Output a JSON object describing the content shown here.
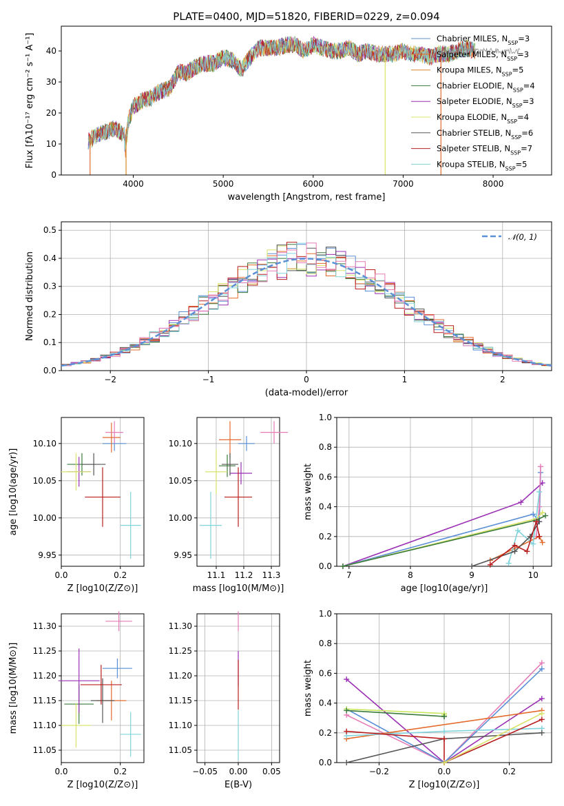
{
  "page": {
    "title": "PLATE=0400, MJD=51820, FIBERID=0229, z=0.094"
  },
  "colors": {
    "Chabrier MILES": "#5b8fd6",
    "Salpeter MILES": "#e36a2a",
    "Kroupa MILES": "#d98a26",
    "Chabrier ELODIE": "#3a7a3a",
    "Salpeter ELODIE": "#9a2fb3",
    "Kroupa ELODIE": "#d9e36a",
    "Chabrier STELIB": "#555555",
    "Salpeter STELIB": "#b81d1d",
    "Kroupa STELIB": "#7fd3dc",
    "extra_pink": "#e67bb6",
    "extra_lime": "#c8e65c",
    "gaussian": "#5b8fd6"
  },
  "chart_data": [
    {
      "id": "spectrum",
      "type": "line",
      "title": "PLATE=0400, MJD=51820, FIBERID=0229, z=0.094",
      "xlabel": "wavelength [Angstrom, rest frame]",
      "ylabel": "Flux [fλ10⁻¹⁷ erg cm⁻² s⁻¹ A⁻¹]",
      "xlim": [
        3200,
        8650
      ],
      "ylim": [
        0,
        48
      ],
      "xticks": [
        4000,
        5000,
        6000,
        7000,
        8000
      ],
      "yticks": [
        0,
        10,
        20,
        30,
        40
      ],
      "grid": false,
      "legend_position": "top-right",
      "legend": [
        {
          "name": "Chabrier MILES",
          "nssp": "3"
        },
        {
          "name": "Salpeter MILES",
          "nssp": "3"
        },
        {
          "name": "Kroupa MILES",
          "nssp": "5"
        },
        {
          "name": "Chabrier ELODIE",
          "nssp": "4"
        },
        {
          "name": "Salpeter ELODIE",
          "nssp": "3"
        },
        {
          "name": "Kroupa ELODIE",
          "nssp": "4"
        },
        {
          "name": "Chabrier STELIB",
          "nssp": "6"
        },
        {
          "name": "Salpeter STELIB",
          "nssp": "7"
        },
        {
          "name": "Kroupa STELIB",
          "nssp": "5"
        }
      ],
      "envelope": {
        "x": [
          3500,
          3600,
          3700,
          3800,
          3900,
          4000,
          4100,
          4200,
          4300,
          4400,
          4500,
          4600,
          4700,
          4800,
          4900,
          5000,
          5100,
          5200,
          5300,
          5400,
          5500,
          5600,
          5700,
          5800,
          5900,
          6000,
          6100,
          6200,
          6300,
          6400,
          6500,
          6600,
          6700,
          6800,
          6900,
          7000,
          7100,
          7200,
          7300,
          7400,
          7500,
          7600,
          7700,
          7800
        ],
        "y": [
          11,
          13,
          14,
          15,
          13,
          22,
          24,
          25,
          27,
          28,
          33,
          33,
          35,
          36,
          36,
          38,
          37,
          34,
          38,
          41,
          41,
          41,
          42,
          42,
          40,
          42,
          41,
          40,
          40,
          41,
          39,
          40,
          39,
          39,
          39,
          40,
          39,
          39,
          38,
          39,
          39,
          40,
          41,
          40
        ]
      },
      "dropouts": [
        {
          "x": 3520,
          "series": "Salpeter MILES"
        },
        {
          "x": 3920,
          "series": "Kroupa MILES"
        },
        {
          "x": 6800,
          "series": "Kroupa ELODIE"
        },
        {
          "x": 7420,
          "series": "Salpeter MILES"
        }
      ]
    },
    {
      "id": "residuals",
      "type": "histogram",
      "xlabel": "(data-model)/error",
      "ylabel": "Normed distribution",
      "xlim": [
        -2.5,
        2.5
      ],
      "ylim": [
        0,
        0.53
      ],
      "xticks": [
        -2,
        -1,
        0,
        1,
        2
      ],
      "yticks": [
        0.0,
        0.1,
        0.2,
        0.3,
        0.4,
        0.5
      ],
      "grid": true,
      "legend_position": "top-right",
      "legend": [
        {
          "name": "𝒩(0, 1)",
          "style": "dashed"
        }
      ],
      "bin_width": 0.1
    },
    {
      "id": "age-vs-z",
      "type": "errorbar",
      "xlabel": "Z [log10(Z/Z⊙)]",
      "ylabel": "age  [log10(age/yr)]",
      "xlim": [
        0.0,
        0.28
      ],
      "ylim": [
        9.935,
        10.135
      ],
      "xticks": [
        0.0,
        0.2
      ],
      "yticks": [
        9.95,
        10.0,
        10.05,
        10.1
      ],
      "grid": true,
      "points": [
        {
          "x": 0.18,
          "y": 10.1,
          "xerr": 0.04,
          "yerr": 0.01,
          "color": "#5b8fd6"
        },
        {
          "x": 0.17,
          "y": 10.108,
          "xerr": 0.03,
          "yerr": 0.02,
          "color": "#e36a2a"
        },
        {
          "x": 0.18,
          "y": 10.115,
          "xerr": 0.03,
          "yerr": 0.015,
          "color": "#e67bb6"
        },
        {
          "x": 0.07,
          "y": 10.072,
          "xerr": 0.05,
          "yerr": 0.015,
          "color": "#3a7a3a"
        },
        {
          "x": 0.06,
          "y": 10.062,
          "xerr": 0.04,
          "yerr": 0.02,
          "color": "#9a2fb3"
        },
        {
          "x": 0.05,
          "y": 10.062,
          "xerr": 0.05,
          "yerr": 0.025,
          "color": "#d9e36a"
        },
        {
          "x": 0.11,
          "y": 10.072,
          "xerr": 0.04,
          "yerr": 0.015,
          "color": "#555555"
        },
        {
          "x": 0.14,
          "y": 10.028,
          "xerr": 0.06,
          "yerr": 0.04,
          "color": "#b81d1d"
        },
        {
          "x": 0.235,
          "y": 9.99,
          "xerr": 0.035,
          "yerr": 0.045,
          "color": "#7fd3dc"
        }
      ]
    },
    {
      "id": "age-vs-mass",
      "type": "errorbar",
      "xlabel": "mass [log10(M/M⊙)]",
      "ylabel": "",
      "xlim": [
        11.03,
        11.33
      ],
      "ylim": [
        9.935,
        10.135
      ],
      "xticks": [
        11.1,
        11.2,
        11.3
      ],
      "yticks": [
        9.95,
        10.0,
        10.05,
        10.1
      ],
      "grid": true,
      "points": [
        {
          "x": 11.21,
          "y": 10.1,
          "xerr": 0.03,
          "yerr": 0.01,
          "color": "#5b8fd6"
        },
        {
          "x": 11.15,
          "y": 10.105,
          "xerr": 0.04,
          "yerr": 0.025,
          "color": "#e36a2a"
        },
        {
          "x": 11.31,
          "y": 10.115,
          "xerr": 0.05,
          "yerr": 0.015,
          "color": "#e67bb6"
        },
        {
          "x": 11.14,
          "y": 10.07,
          "xerr": 0.03,
          "yerr": 0.015,
          "color": "#3a7a3a"
        },
        {
          "x": 11.19,
          "y": 10.06,
          "xerr": 0.04,
          "yerr": 0.015,
          "color": "#9a2fb3"
        },
        {
          "x": 11.1,
          "y": 10.062,
          "xerr": 0.04,
          "yerr": 0.03,
          "color": "#d9e36a"
        },
        {
          "x": 11.15,
          "y": 10.072,
          "xerr": 0.03,
          "yerr": 0.015,
          "color": "#555555"
        },
        {
          "x": 11.18,
          "y": 10.028,
          "xerr": 0.05,
          "yerr": 0.04,
          "color": "#b81d1d"
        },
        {
          "x": 11.08,
          "y": 9.99,
          "xerr": 0.04,
          "yerr": 0.045,
          "color": "#7fd3dc"
        }
      ]
    },
    {
      "id": "mass-weight-vs-age",
      "type": "line",
      "xlabel": "age  [log10(age/yr)]",
      "ylabel": "mass weight",
      "xlim": [
        6.8,
        10.3
      ],
      "ylim": [
        0,
        1.0
      ],
      "xticks": [
        7,
        8,
        9,
        10
      ],
      "yticks": [
        0.0,
        0.2,
        0.4,
        0.6,
        0.8,
        1.0
      ],
      "grid": true,
      "series": [
        {
          "color": "#9a2fb3",
          "x": [
            6.9,
            9.8,
            10.15
          ],
          "y": [
            0.0,
            0.43,
            0.56
          ]
        },
        {
          "color": "#5b8fd6",
          "x": [
            6.9,
            10.0,
            10.1,
            10.12
          ],
          "y": [
            0.0,
            0.35,
            0.3,
            0.63
          ]
        },
        {
          "color": "#e67bb6",
          "x": [
            10.05,
            10.1,
            10.12
          ],
          "y": [
            0.2,
            0.4,
            0.67
          ]
        },
        {
          "color": "#d9e36a",
          "x": [
            6.9,
            10.05,
            10.15
          ],
          "y": [
            0.0,
            0.32,
            0.36
          ]
        },
        {
          "color": "#3a7a3a",
          "x": [
            6.9,
            10.05,
            10.2
          ],
          "y": [
            0.0,
            0.31,
            0.34
          ]
        },
        {
          "color": "#e36a2a",
          "x": [
            9.3,
            10.1,
            10.15
          ],
          "y": [
            0.04,
            0.2,
            0.16
          ]
        },
        {
          "color": "#7fd3dc",
          "x": [
            9.6,
            9.75,
            10.0,
            10.1
          ],
          "y": [
            0.02,
            0.24,
            0.15,
            0.5
          ]
        },
        {
          "color": "#555555",
          "x": [
            9.0,
            9.7,
            9.95,
            10.1
          ],
          "y": [
            0.0,
            0.1,
            0.2,
            0.3
          ]
        },
        {
          "color": "#b81d1d",
          "x": [
            9.3,
            9.7,
            9.9,
            10.05,
            10.1
          ],
          "y": [
            0.01,
            0.14,
            0.1,
            0.3,
            0.2
          ]
        }
      ]
    },
    {
      "id": "mass-vs-z",
      "type": "errorbar",
      "xlabel": "Z [log10(Z/Z⊙)]",
      "ylabel": "mass [log10(M/M⊙)]",
      "xlim": [
        0.0,
        0.28
      ],
      "ylim": [
        11.025,
        11.325
      ],
      "xticks": [
        0.0,
        0.2
      ],
      "yticks": [
        11.05,
        11.1,
        11.15,
        11.2,
        11.25,
        11.3
      ],
      "grid": true,
      "points": [
        {
          "x": 0.19,
          "y": 11.215,
          "xerr": 0.05,
          "yerr": 0.02,
          "color": "#5b8fd6"
        },
        {
          "x": 0.17,
          "y": 11.15,
          "xerr": 0.05,
          "yerr": 0.04,
          "color": "#e36a2a"
        },
        {
          "x": 0.195,
          "y": 11.31,
          "xerr": 0.045,
          "yerr": 0.02,
          "color": "#e67bb6"
        },
        {
          "x": 0.06,
          "y": 11.143,
          "xerr": 0.05,
          "yerr": 0.04,
          "color": "#3a7a3a"
        },
        {
          "x": 0.06,
          "y": 11.19,
          "xerr": 0.07,
          "yerr": 0.065,
          "color": "#9a2fb3"
        },
        {
          "x": 0.05,
          "y": 11.1,
          "xerr": 0.05,
          "yerr": 0.045,
          "color": "#d9e36a"
        },
        {
          "x": 0.14,
          "y": 11.15,
          "xerr": 0.04,
          "yerr": 0.045,
          "color": "#555555"
        },
        {
          "x": 0.135,
          "y": 11.182,
          "xerr": 0.07,
          "yerr": 0.04,
          "color": "#b81d1d"
        },
        {
          "x": 0.235,
          "y": 11.082,
          "xerr": 0.035,
          "yerr": 0.045,
          "color": "#7fd3dc"
        }
      ]
    },
    {
      "id": "mass-vs-ebv",
      "type": "errorbar",
      "xlabel": "E(B-V)",
      "ylabel": "",
      "xlim": [
        -0.062,
        0.062
      ],
      "ylim": [
        11.025,
        11.325
      ],
      "xticks": [
        -0.05,
        0.0,
        0.05
      ],
      "xtick_labels": [
        "−0.05",
        "0.00",
        "0.05"
      ],
      "yticks": [
        11.05,
        11.1,
        11.15,
        11.2,
        11.25,
        11.3
      ],
      "grid": true,
      "points": [
        {
          "x": 0.0,
          "y": 11.31,
          "xerr": 0,
          "yerr": 0.02,
          "color": "#e67bb6"
        },
        {
          "x": 0.0,
          "y": 11.215,
          "xerr": 0,
          "yerr": 0.035,
          "color": "#9a2fb3"
        },
        {
          "x": 0.0,
          "y": 11.182,
          "xerr": 0,
          "yerr": 0.05,
          "color": "#b81d1d"
        },
        {
          "x": 0.0,
          "y": 11.08,
          "xerr": 0,
          "yerr": 0.05,
          "color": "#7fd3dc"
        }
      ]
    },
    {
      "id": "mass-weight-vs-z",
      "type": "line",
      "xlabel": "Z [log10(Z/Z⊙)]",
      "ylabel": "mass weight",
      "xlim": [
        -0.33,
        0.33
      ],
      "ylim": [
        0,
        1.0
      ],
      "xticks": [
        -0.2,
        0.0,
        0.2
      ],
      "xtick_labels": [
        "−0.2",
        "0.0",
        "0.2"
      ],
      "yticks": [
        0.0,
        0.2,
        0.4,
        0.6,
        0.8,
        1.0
      ],
      "grid": true,
      "series": [
        {
          "color": "#9a2fb3",
          "x": [
            -0.3,
            0.0,
            0.3
          ],
          "y": [
            0.56,
            0.0,
            0.43
          ]
        },
        {
          "color": "#e67bb6",
          "x": [
            -0.3,
            0.0,
            0.3
          ],
          "y": [
            0.32,
            0.0,
            0.67
          ]
        },
        {
          "color": "#5b8fd6",
          "x": [
            -0.3,
            0.0,
            0.3
          ],
          "y": [
            0.36,
            0.0,
            0.63
          ]
        },
        {
          "color": "#c8e65c",
          "x": [
            -0.3,
            0.0,
            0.0
          ],
          "y": [
            0.36,
            0.33,
            0.32
          ]
        },
        {
          "color": "#3a7a3a",
          "x": [
            -0.3,
            0.0,
            0.0
          ],
          "y": [
            0.35,
            0.31,
            0.31
          ]
        },
        {
          "color": "#e36a2a",
          "x": [
            -0.3,
            0.3
          ],
          "y": [
            0.16,
            0.35
          ]
        },
        {
          "color": "#7fd3dc",
          "x": [
            -0.3,
            0.0,
            0.3
          ],
          "y": [
            0.18,
            0.21,
            0.23
          ]
        },
        {
          "color": "#555555",
          "x": [
            -0.3,
            0.0,
            0.3
          ],
          "y": [
            0.0,
            0.16,
            0.2
          ]
        },
        {
          "color": "#b81d1d",
          "x": [
            -0.3,
            0.0,
            0.0,
            0.3
          ],
          "y": [
            0.21,
            0.16,
            0.0,
            0.29
          ]
        },
        {
          "color": "#d9e36a",
          "x": [
            0.0,
            0.3
          ],
          "y": [
            0.0,
            0.33
          ]
        }
      ]
    }
  ]
}
